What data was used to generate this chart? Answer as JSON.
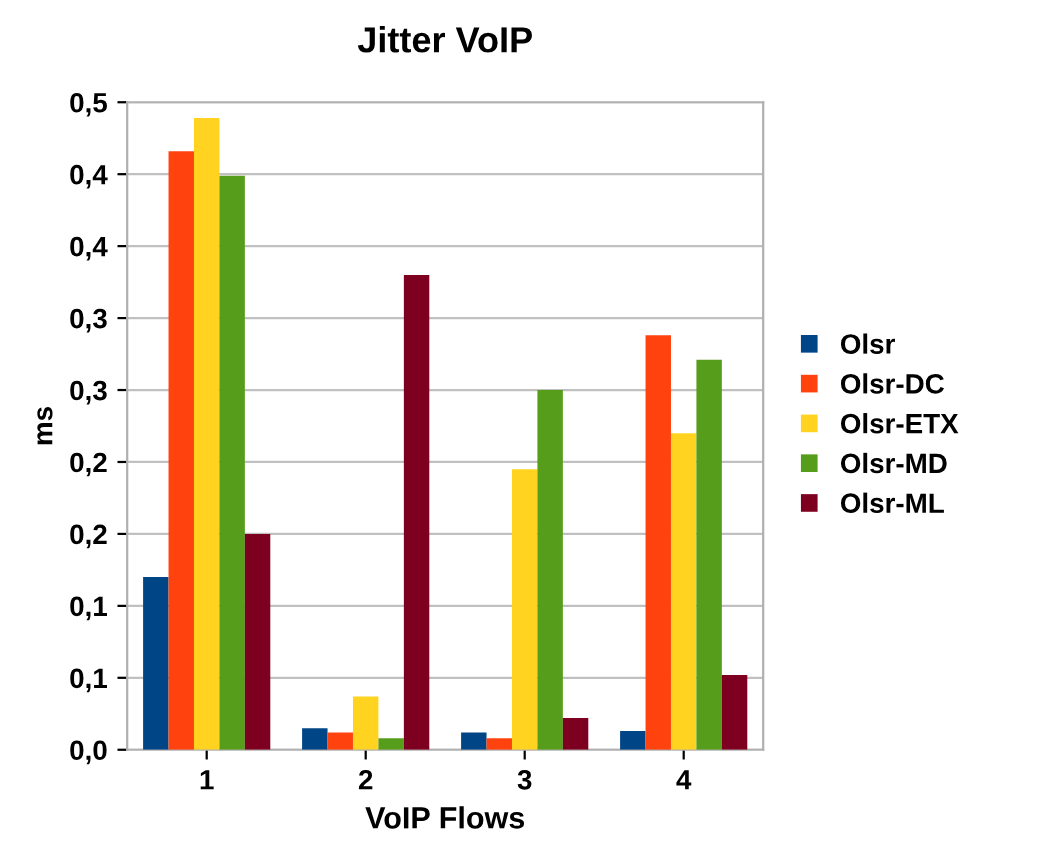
{
  "chart_data": {
    "type": "bar",
    "title": "Jitter VoIP",
    "xlabel": "VoIP Flows",
    "ylabel": "ms",
    "categories": [
      "1",
      "2",
      "3",
      "4"
    ],
    "series": [
      {
        "name": "Olsr",
        "color": "#004586",
        "values": [
          0.12,
          0.015,
          0.012,
          0.013
        ]
      },
      {
        "name": "Olsr-DC",
        "color": "#ff420e",
        "values": [
          0.416,
          0.012,
          0.008,
          0.288
        ]
      },
      {
        "name": "Olsr-ETX",
        "color": "#ffd320",
        "values": [
          0.439,
          0.037,
          0.195,
          0.22
        ]
      },
      {
        "name": "Olsr-MD",
        "color": "#579d1c",
        "values": [
          0.399,
          0.008,
          0.25,
          0.271
        ]
      },
      {
        "name": "Olsr-ML",
        "color": "#7e0021",
        "values": [
          0.15,
          0.33,
          0.022,
          0.052
        ]
      }
    ],
    "ylim": [
      0,
      0.45
    ],
    "yticks": [
      {
        "value": 0,
        "label": "0,0"
      },
      {
        "value": 0.05,
        "label": "0,1"
      },
      {
        "value": 0.1,
        "label": "0,1"
      },
      {
        "value": 0.15,
        "label": "0,2"
      },
      {
        "value": 0.2,
        "label": "0,2"
      },
      {
        "value": 0.25,
        "label": "0,3"
      },
      {
        "value": 0.3,
        "label": "0,3"
      },
      {
        "value": 0.35,
        "label": "0,4"
      },
      {
        "value": 0.4,
        "label": "0,4"
      },
      {
        "value": 0.45,
        "label": "0,5"
      }
    ],
    "grid": "y",
    "legend": "right"
  }
}
